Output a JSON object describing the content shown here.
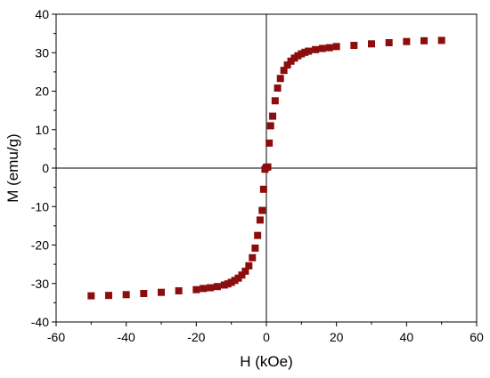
{
  "chart_data": {
    "type": "scatter",
    "title": "",
    "xlabel": "H (kOe)",
    "ylabel": "M (emu/g)",
    "xlim": [
      -60,
      60
    ],
    "ylim": [
      -40,
      40
    ],
    "xticks": [
      -60,
      -40,
      -20,
      0,
      20,
      40,
      60
    ],
    "yticks": [
      -40,
      -30,
      -20,
      -10,
      0,
      10,
      20,
      30,
      40
    ],
    "grid": false,
    "legend": "none",
    "marker": "square",
    "color": "#8b0d0d",
    "series": [
      {
        "x": [
          50,
          45,
          40,
          35,
          30,
          25,
          20,
          18,
          16,
          14,
          12,
          11,
          10,
          9,
          8,
          7,
          6,
          5,
          4,
          3.2,
          2.5,
          1.8,
          1.2,
          0.8,
          0.4,
          0,
          -0.4,
          -0.8,
          -1.2,
          -1.8,
          -2.5,
          -3.2,
          -4,
          -5,
          -6,
          -7,
          -8,
          -9,
          -10,
          -11,
          -12,
          -14,
          -16,
          -18,
          -20,
          -25,
          -30,
          -35,
          -40,
          -45,
          -50
        ],
        "y": [
          33.2,
          33.1,
          32.9,
          32.6,
          32.3,
          31.9,
          31.6,
          31.3,
          31.1,
          30.8,
          30.4,
          30.1,
          29.7,
          29.2,
          28.6,
          27.8,
          26.8,
          25.4,
          23.3,
          20.8,
          17.5,
          13.5,
          11,
          6.5,
          0.3,
          0.2,
          -0.3,
          -5.5,
          -11,
          -13.5,
          -17.5,
          -20.8,
          -23.3,
          -25.4,
          -26.8,
          -27.8,
          -28.6,
          -29.2,
          -29.7,
          -30.1,
          -30.4,
          -30.8,
          -31.1,
          -31.3,
          -31.6,
          -31.9,
          -32.3,
          -32.6,
          -32.9,
          -33.1,
          -33.2
        ]
      }
    ]
  }
}
